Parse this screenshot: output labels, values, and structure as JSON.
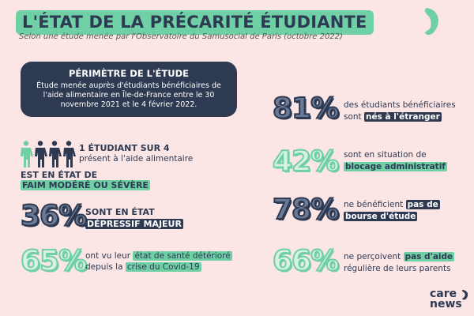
{
  "header": {
    "title": "L'ÉTAT DE LA PRÉCARITÉ ÉTUDIANTE",
    "subtitle": "Selon une étude menée par l'Observatoire du Samusocial de Paris (octobre 2022)"
  },
  "scope": {
    "title": "PÉRIMÈTRE DE L'ÉTUDE",
    "text": "Étude menée auprès d'étudiants bénéficiaires de l'aide alimentaire en Île-de-France entre le 30 novembre 2021 et le 4 février 2022."
  },
  "hunger": {
    "ratio_label": "1 ÉTUDIANT SUR 4",
    "ratio_sub": "présent à l'aide alimentaire",
    "line1": "EST EN ÉTAT DE",
    "line2": "FAIM MODÉRÉ OU SÉVÈRE",
    "people_total": 4,
    "people_highlighted": 1
  },
  "stats": [
    {
      "value": "36%",
      "pre": "SONT EN ÉTAT",
      "hl": "DÉPRESSIF MAJEUR",
      "post": ""
    },
    {
      "value": "65%",
      "pre": "ont vu leur",
      "hl": "état de santé détérioré",
      "line2_pre": "depuis la",
      "line2_hl": "crise du Covid-19"
    },
    {
      "value": "81%",
      "line1": "des étudiants bénéficiaires",
      "line2_pre": "sont",
      "line2_hl": "nés à l'étranger"
    },
    {
      "value": "42%",
      "line1": "sont en situation de",
      "line2_hl": "blocage administratif"
    },
    {
      "value": "78%",
      "line1_pre": "ne bénéficient",
      "line1_hl": "pas de",
      "line2_hl": "bourse d'étude"
    },
    {
      "value": "66%",
      "line1_pre": "ne perçoivent",
      "line1_hl": "pas d'aide",
      "line2": "régulière de leurs parents"
    }
  ],
  "brand": {
    "logo_line1": "care",
    "logo_line2": "news"
  },
  "colors": {
    "background": "#fbe5e5",
    "teal": "#6fcfa5",
    "navy": "#2e3a52"
  }
}
